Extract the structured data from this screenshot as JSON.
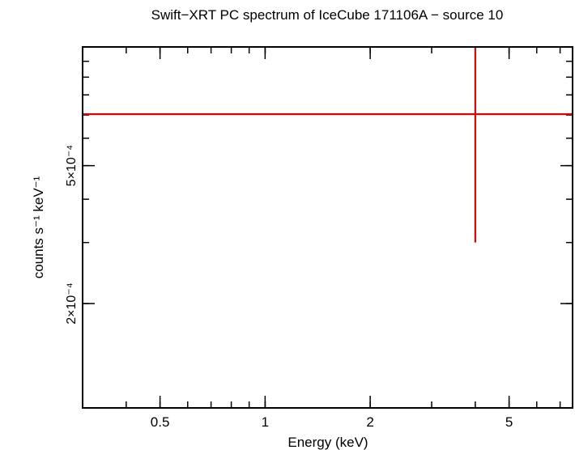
{
  "chart_data": {
    "type": "scatter",
    "title": "Swift−XRT PC spectrum of IceCube 171106A − source 10",
    "xlabel": "Energy (keV)",
    "ylabel": "counts s⁻¹ keV⁻¹",
    "x_scale": "log",
    "y_scale": "log",
    "xlim": [
      0.3,
      7.6
    ],
    "ylim": [
      0.0001,
      0.0011
    ],
    "x_ticks": [
      {
        "value": 0.5,
        "label": "0.5"
      },
      {
        "value": 1,
        "label": "1"
      },
      {
        "value": 2,
        "label": "2"
      },
      {
        "value": 5,
        "label": "5"
      }
    ],
    "y_ticks": [
      {
        "value": 0.0002,
        "label": "2×10⁻⁴"
      },
      {
        "value": 0.0005,
        "label": "5×10⁻⁴"
      }
    ],
    "series": [
      {
        "color": "#e00000",
        "points": [
          {
            "x": 4.0,
            "x_err": [
              0.3,
              7.6
            ],
            "y": 0.000704,
            "y_err": [
              0.0003,
              0.0011
            ]
          }
        ]
      }
    ]
  }
}
